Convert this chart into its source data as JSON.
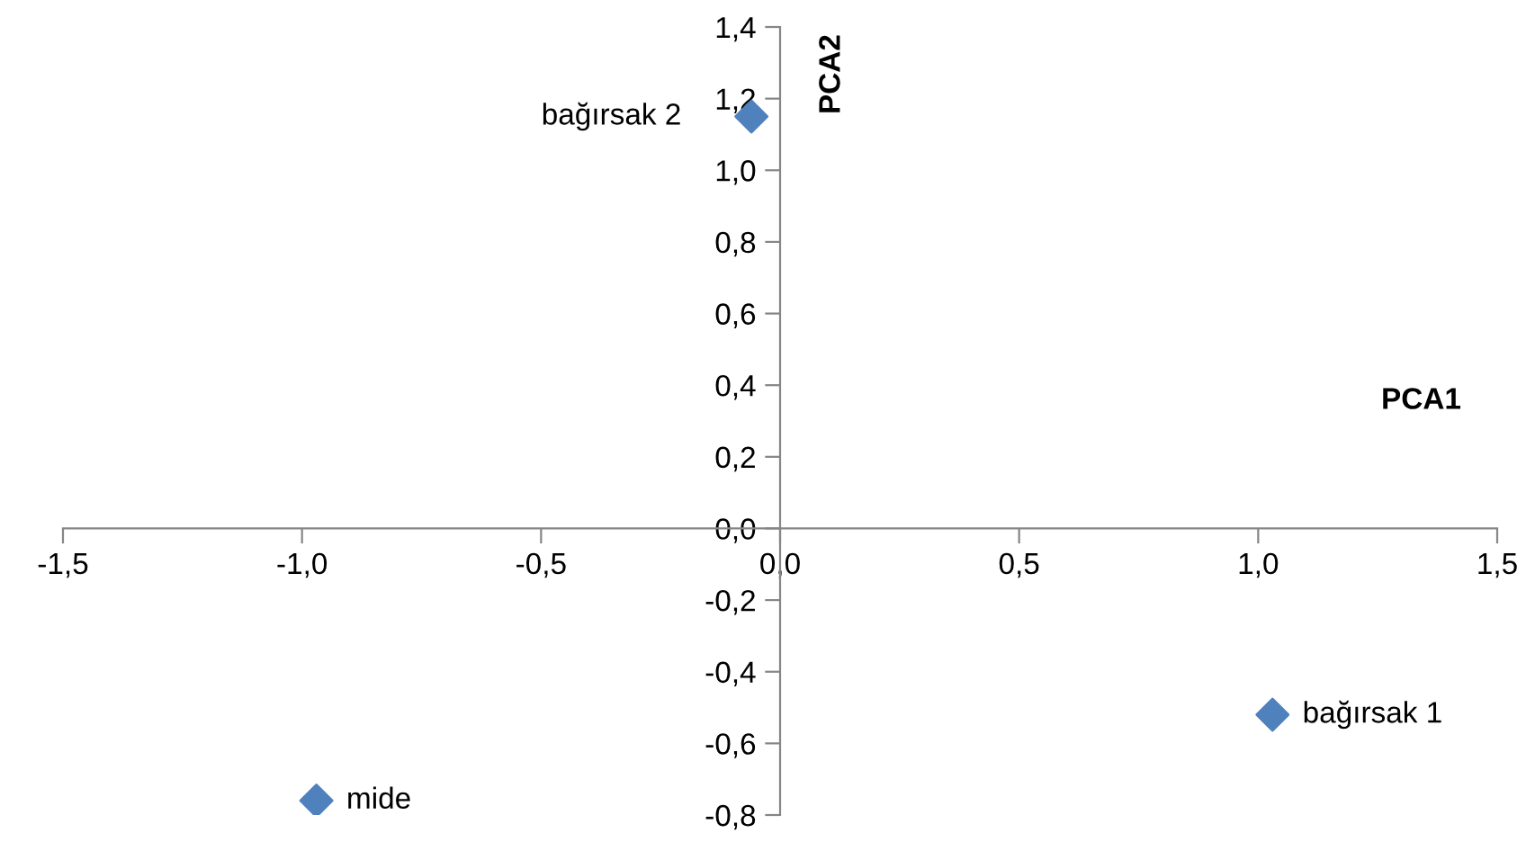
{
  "chart_data": {
    "type": "scatter",
    "xlabel": "PCA1",
    "ylabel": "PCA2",
    "x": [
      1.03,
      -0.06,
      -0.97
    ],
    "series": [
      {
        "color": "#4f81bd",
        "values": [
          -0.52,
          1.15,
          -0.76
        ]
      }
    ],
    "marker": "diamond",
    "grid": false,
    "legend": false,
    "xlim": [
      -1.5,
      1.5
    ],
    "ylim": [
      -0.8,
      1.4
    ],
    "xticks": [
      {
        "value": -1.5,
        "label": "-1,5"
      },
      {
        "value": -1.0,
        "label": "-1,0"
      },
      {
        "value": -0.5,
        "label": "-0,5"
      },
      {
        "value": 0,
        "label": "0,0"
      },
      {
        "value": 0.5,
        "label": "0,5"
      },
      {
        "value": 1.0,
        "label": "1,0"
      },
      {
        "value": 1.5,
        "label": "1,5"
      }
    ],
    "yticks": [
      {
        "value": -0.8,
        "label": "-0,8"
      },
      {
        "value": -0.6,
        "label": "-0,6"
      },
      {
        "value": -0.4,
        "label": "-0,4"
      },
      {
        "value": -0.2,
        "label": "-0,2"
      },
      {
        "value": 0,
        "label": "0,0"
      },
      {
        "value": 0.2,
        "label": "0,2"
      },
      {
        "value": 0.4,
        "label": "0,4"
      },
      {
        "value": 0.6,
        "label": "0,6"
      },
      {
        "value": 0.8,
        "label": "0,8"
      },
      {
        "value": 1.0,
        "label": "1,0"
      },
      {
        "value": 1.2,
        "label": "1,2"
      },
      {
        "value": 1.4,
        "label": "1,4"
      }
    ],
    "annotations": [
      {
        "text": "bağırsak 1",
        "x": 1.03,
        "y": -0.52
      },
      {
        "text": "bağırsak 2",
        "x": -0.06,
        "y": 1.15
      },
      {
        "text": "mide",
        "x": -0.97,
        "y": -0.76
      }
    ]
  }
}
